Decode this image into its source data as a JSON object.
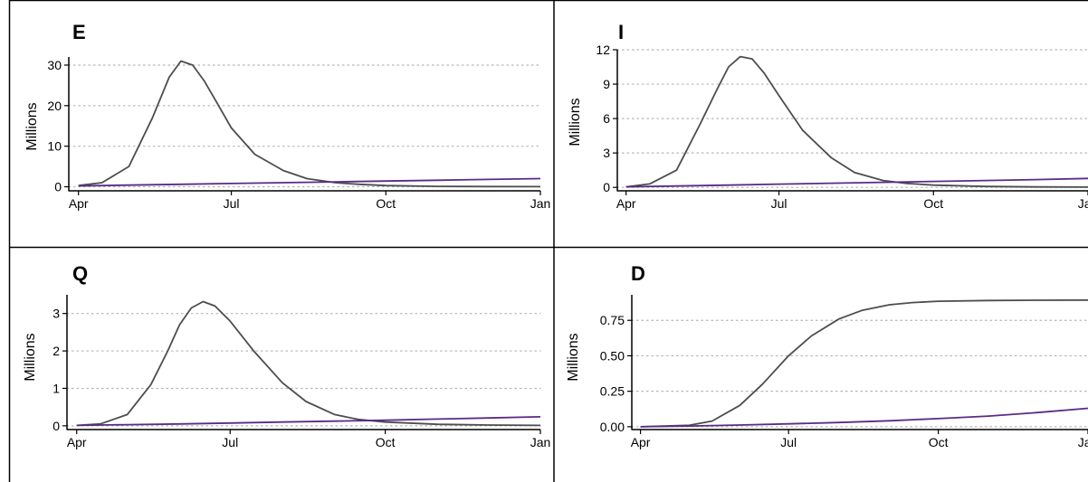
{
  "chart_data": [
    {
      "type": "line",
      "title": "E",
      "ylabel": "Millions",
      "xlabel": "",
      "xlim": [
        "2020-03-30",
        "2021-01-01"
      ],
      "ylim": [
        -1,
        32
      ],
      "yticks": [
        0,
        10,
        20,
        30
      ],
      "xticks": [
        {
          "label": "Apr",
          "date": "2020-04-01"
        },
        {
          "label": "Jul",
          "date": "2020-07-01"
        },
        {
          "label": "Oct",
          "date": "2020-10-01"
        },
        {
          "label": "Jan",
          "date": "2021-01-01"
        }
      ],
      "grid": "horizontal-dotted",
      "series": [
        {
          "color": "#4d4d4d",
          "x": [
            "2020-04-01",
            "2020-04-15",
            "2020-05-01",
            "2020-05-15",
            "2020-05-25",
            "2020-06-01",
            "2020-06-08",
            "2020-06-15",
            "2020-06-22",
            "2020-07-01",
            "2020-07-15",
            "2020-08-01",
            "2020-08-15",
            "2020-09-01",
            "2020-09-15",
            "2020-10-01",
            "2020-11-01",
            "2020-12-01",
            "2021-01-01"
          ],
          "values": [
            0.3,
            1.0,
            5.0,
            17.0,
            27.0,
            31.0,
            30.0,
            26.0,
            21.0,
            14.5,
            8.0,
            4.0,
            2.0,
            1.0,
            0.6,
            0.3,
            0.1,
            0.05,
            0.02
          ]
        },
        {
          "color": "#5b2a86",
          "x": [
            "2020-04-01",
            "2020-05-01",
            "2020-06-01",
            "2020-07-01",
            "2020-08-01",
            "2020-09-01",
            "2020-10-01",
            "2020-11-01",
            "2020-12-01",
            "2021-01-01"
          ],
          "values": [
            0.2,
            0.4,
            0.6,
            0.8,
            1.0,
            1.2,
            1.4,
            1.6,
            1.8,
            2.0
          ]
        }
      ]
    },
    {
      "type": "line",
      "title": "I",
      "ylabel": "Millions",
      "xlabel": "",
      "xlim": [
        "2020-03-30",
        "2021-01-01"
      ],
      "ylim": [
        -0.3,
        12
      ],
      "yticks": [
        0,
        3,
        6,
        9,
        12
      ],
      "xticks": [
        {
          "label": "Apr",
          "date": "2020-04-01"
        },
        {
          "label": "Jul",
          "date": "2020-07-01"
        },
        {
          "label": "Oct",
          "date": "2020-10-01"
        },
        {
          "label": "Jan",
          "date": "2021-01-01"
        }
      ],
      "grid": "horizontal-dotted",
      "series": [
        {
          "color": "#4d4d4d",
          "x": [
            "2020-04-01",
            "2020-04-15",
            "2020-05-01",
            "2020-05-15",
            "2020-05-25",
            "2020-06-01",
            "2020-06-08",
            "2020-06-15",
            "2020-06-22",
            "2020-07-01",
            "2020-07-15",
            "2020-08-01",
            "2020-08-15",
            "2020-09-01",
            "2020-09-15",
            "2020-10-01",
            "2020-11-01",
            "2020-12-01",
            "2021-01-01"
          ],
          "values": [
            0.05,
            0.3,
            1.5,
            5.5,
            8.5,
            10.5,
            11.4,
            11.2,
            10.0,
            8.0,
            5.0,
            2.6,
            1.3,
            0.6,
            0.35,
            0.2,
            0.08,
            0.04,
            0.02
          ]
        },
        {
          "color": "#5b2a86",
          "x": [
            "2020-04-01",
            "2020-05-01",
            "2020-06-01",
            "2020-07-01",
            "2020-08-01",
            "2020-09-01",
            "2020-10-01",
            "2020-11-01",
            "2020-12-01",
            "2021-01-01"
          ],
          "values": [
            0.05,
            0.12,
            0.2,
            0.28,
            0.36,
            0.44,
            0.52,
            0.6,
            0.68,
            0.78
          ]
        }
      ]
    },
    {
      "type": "line",
      "title": "Q",
      "ylabel": "Millions",
      "xlabel": "",
      "xlim": [
        "2020-03-30",
        "2021-01-01"
      ],
      "ylim": [
        -0.1,
        3.5
      ],
      "yticks": [
        0,
        1,
        2,
        3
      ],
      "xticks": [
        {
          "label": "Apr",
          "date": "2020-04-01"
        },
        {
          "label": "Jul",
          "date": "2020-07-01"
        },
        {
          "label": "Oct",
          "date": "2020-10-01"
        },
        {
          "label": "Jan",
          "date": "2021-01-01"
        }
      ],
      "grid": "horizontal-dotted",
      "series": [
        {
          "color": "#4d4d4d",
          "x": [
            "2020-04-01",
            "2020-04-15",
            "2020-05-01",
            "2020-05-15",
            "2020-05-25",
            "2020-06-01",
            "2020-06-08",
            "2020-06-15",
            "2020-06-22",
            "2020-07-01",
            "2020-07-15",
            "2020-08-01",
            "2020-08-15",
            "2020-09-01",
            "2020-09-15",
            "2020-10-01",
            "2020-11-01",
            "2020-12-01",
            "2021-01-01"
          ],
          "values": [
            0.01,
            0.05,
            0.3,
            1.1,
            2.0,
            2.7,
            3.15,
            3.32,
            3.2,
            2.8,
            2.0,
            1.15,
            0.65,
            0.3,
            0.17,
            0.1,
            0.04,
            0.02,
            0.01
          ]
        },
        {
          "color": "#5b2a86",
          "x": [
            "2020-04-01",
            "2020-05-01",
            "2020-06-01",
            "2020-07-01",
            "2020-08-01",
            "2020-09-01",
            "2020-10-01",
            "2020-11-01",
            "2020-12-01",
            "2021-01-01"
          ],
          "values": [
            0.01,
            0.03,
            0.05,
            0.075,
            0.1,
            0.125,
            0.15,
            0.18,
            0.21,
            0.24
          ]
        }
      ]
    },
    {
      "type": "line",
      "title": "D",
      "ylabel": "Millions",
      "xlabel": "",
      "xlim": [
        "2020-03-30",
        "2021-01-01"
      ],
      "ylim": [
        -0.02,
        0.93
      ],
      "yticks": [
        0.0,
        0.25,
        0.5,
        0.75
      ],
      "ytick_labels": [
        "0.00",
        "0.25",
        "0.50",
        "0.75"
      ],
      "xticks": [
        {
          "label": "Apr",
          "date": "2020-04-01"
        },
        {
          "label": "Jul",
          "date": "2020-07-01"
        },
        {
          "label": "Oct",
          "date": "2020-10-01"
        },
        {
          "label": "Jan",
          "date": "2021-01-01"
        }
      ],
      "grid": "horizontal-dotted",
      "series": [
        {
          "color": "#4d4d4d",
          "x": [
            "2020-04-01",
            "2020-05-01",
            "2020-05-15",
            "2020-06-01",
            "2020-06-15",
            "2020-07-01",
            "2020-07-15",
            "2020-08-01",
            "2020-08-15",
            "2020-09-01",
            "2020-09-15",
            "2020-10-01",
            "2020-11-01",
            "2020-12-01",
            "2021-01-01"
          ],
          "values": [
            0.0,
            0.01,
            0.04,
            0.15,
            0.3,
            0.5,
            0.64,
            0.76,
            0.82,
            0.86,
            0.875,
            0.885,
            0.89,
            0.892,
            0.893
          ]
        },
        {
          "color": "#5b2a86",
          "x": [
            "2020-04-01",
            "2020-05-01",
            "2020-06-01",
            "2020-07-01",
            "2020-08-01",
            "2020-09-01",
            "2020-10-01",
            "2020-11-01",
            "2020-12-01",
            "2021-01-01"
          ],
          "values": [
            0.0,
            0.005,
            0.012,
            0.02,
            0.03,
            0.042,
            0.057,
            0.075,
            0.1,
            0.13
          ]
        }
      ]
    }
  ]
}
